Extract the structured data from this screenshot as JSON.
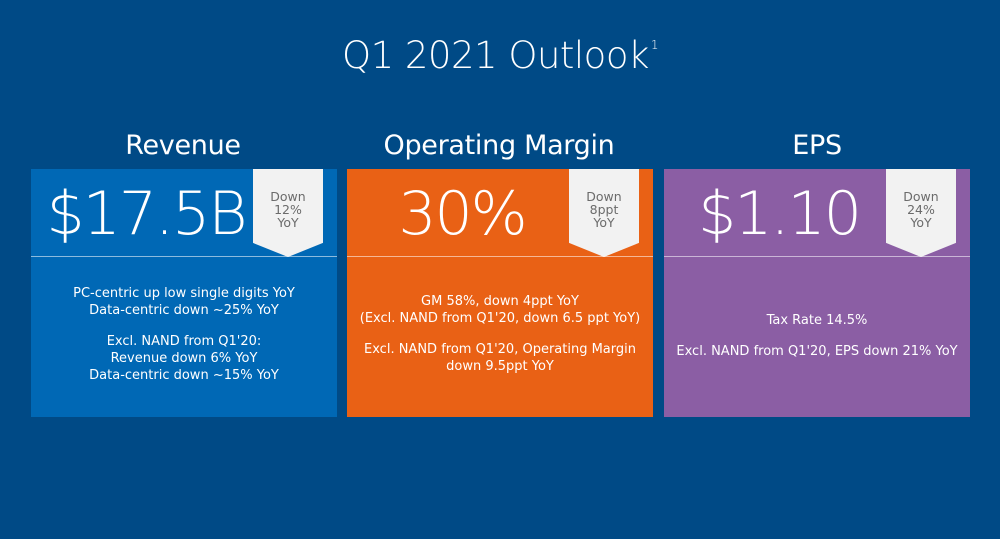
{
  "title": {
    "text": "Q1 2021 Outlook",
    "footnote": "1"
  },
  "columns": [
    {
      "heading": "Revenue",
      "value": "$17.5B",
      "badge": {
        "line1": "Down",
        "line2": "12%",
        "line3": "YoY"
      },
      "color": "#0068b5",
      "details": [
        "PC-centric up low single digits YoY",
        "Data-centric down ~25% YoY",
        "Excl. NAND from Q1'20:",
        "Revenue down 6% YoY",
        "Data-centric down ~15% YoY"
      ]
    },
    {
      "heading": "Operating Margin",
      "value": "30%",
      "badge": {
        "line1": "Down",
        "line2": "8ppt",
        "line3": "YoY"
      },
      "color": "#e96115",
      "details": [
        "GM 58%, down 4ppt YoY",
        "(Excl. NAND from Q1'20, down 6.5 ppt YoY)",
        "Excl. NAND from Q1'20, Operating Margin",
        "down 9.5ppt YoY"
      ]
    },
    {
      "heading": "EPS",
      "value": "$1.10",
      "badge": {
        "line1": "Down",
        "line2": "24%",
        "line3": "YoY"
      },
      "color": "#8b5ea4",
      "details": [
        "Tax Rate 14.5%",
        "Excl. NAND from Q1'20, EPS down 21% YoY"
      ]
    }
  ]
}
